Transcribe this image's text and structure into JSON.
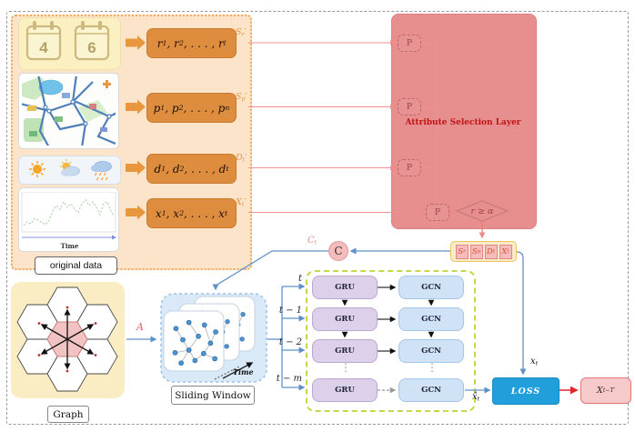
{
  "original_data": {
    "label": "original data",
    "calendar": {
      "month_left": "4",
      "month_right": "6"
    },
    "weather_icons": [
      "sun-icon",
      "partly-cloudy-icon",
      "rain-cloud-icon"
    ],
    "timeseries_axis_label": "Time",
    "rows": [
      {
        "sequence": "r_{1}, r_{2}, . . . , r_{l}",
        "label": "S_{r}′"
      },
      {
        "sequence": "p_{1}, p_{2}, . . . , p_{n}",
        "label": "S_{p}′"
      },
      {
        "sequence": "d_{1}, d_{2}, . . . , d_{t}",
        "label": "D_{t}′"
      },
      {
        "sequence": "x_{1}, x_{2}, . . . , x_{t}",
        "label": "X_{t}′"
      }
    ]
  },
  "attribute_selection_layer": {
    "title": "Attribute Selection Layer",
    "p_nodes": [
      "P",
      "P",
      "P",
      "P"
    ],
    "condition": "r ≥ α",
    "selected_attributes": [
      "S_{r}",
      "S_{p}",
      "D_{t}",
      "X_{t}"
    ]
  },
  "concat_node": {
    "symbol": "C",
    "label": "C_{t}"
  },
  "graph_module": {
    "label": "Graph",
    "adjacency_symbol": "A"
  },
  "sliding_window": {
    "label": "Sliding Window",
    "time_arrow_label": "Time"
  },
  "temporal_grid": {
    "rows": [
      {
        "step": "t",
        "cell": "GRU",
        "conv": "GCN"
      },
      {
        "step": "t − 1",
        "cell": "GRU",
        "conv": "GCN"
      },
      {
        "step": "t − 2",
        "cell": "GRU",
        "conv": "GCN"
      },
      {
        "step": "t − m",
        "cell": "GRU",
        "conv": "GCN"
      }
    ],
    "ellipsis": "⋮"
  },
  "prediction": {
    "loss_label": "LOSS",
    "true_input": "x_{t}",
    "predicted_input": "x̂_{t}",
    "output": "X_{t−T′}"
  },
  "colors": {
    "accent_orange": "#DE8C3E",
    "salmon_layer": "#E78E8E",
    "line_blue": "#6090C8",
    "green_border": "#C6D84A",
    "loss_blue": "#219FDB",
    "red_arrow": "#E3242C"
  }
}
